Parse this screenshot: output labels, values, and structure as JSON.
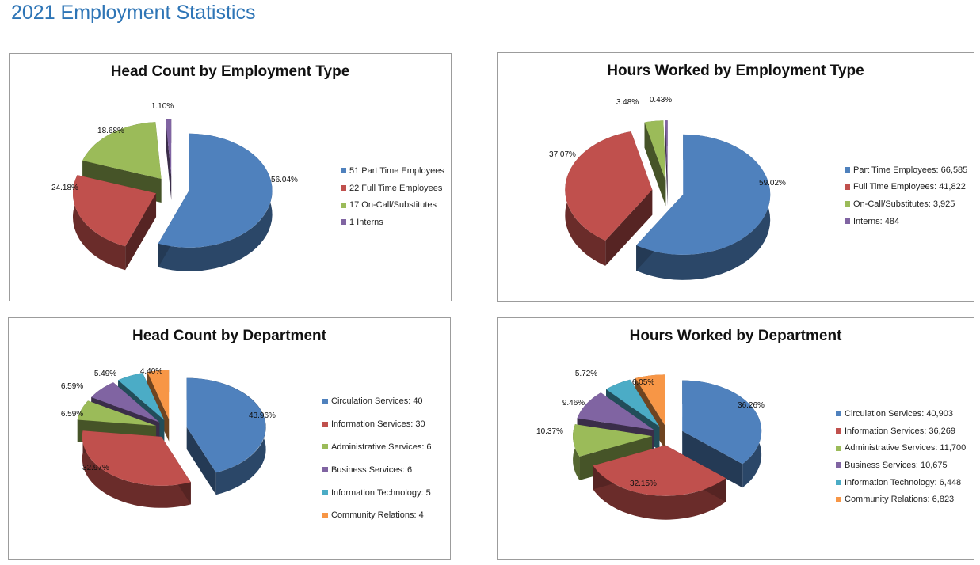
{
  "page_title": "2021 Employment Statistics",
  "chart_data": [
    {
      "type": "pie",
      "title": "Head Count by Employment Type",
      "slices": [
        {
          "label": "51 Part Time Employees",
          "value": 56.04,
          "value_label": "56.04%",
          "color": "#4f81bd"
        },
        {
          "label": "22 Full Time Employees",
          "value": 24.18,
          "value_label": "24.18%",
          "color": "#c0504d"
        },
        {
          "label": "17 On-Call/Substitutes",
          "value": 18.68,
          "value_label": "18.68%",
          "color": "#9bbb59"
        },
        {
          "label": "1 Interns",
          "value": 1.1,
          "value_label": "1.10%",
          "color": "#8064a2"
        }
      ],
      "legend_position": "right"
    },
    {
      "type": "pie",
      "title": "Hours Worked by Employment Type",
      "slices": [
        {
          "label": "Part Time Employees: 66,585",
          "value": 59.02,
          "value_label": "59.02%",
          "color": "#4f81bd"
        },
        {
          "label": "Full Time Employees: 41,822",
          "value": 37.07,
          "value_label": "37.07%",
          "color": "#c0504d"
        },
        {
          "label": "On-Call/Substitutes: 3,925",
          "value": 3.48,
          "value_label": "3.48%",
          "color": "#9bbb59"
        },
        {
          "label": "Interns: 484",
          "value": 0.43,
          "value_label": "0.43%",
          "color": "#8064a2"
        }
      ],
      "legend_position": "right"
    },
    {
      "type": "pie",
      "title": "Head Count by Department",
      "slices": [
        {
          "label": "Circulation Services: 40",
          "value": 43.96,
          "value_label": "43.96%",
          "color": "#4f81bd"
        },
        {
          "label": "Information Services: 30",
          "value": 32.97,
          "value_label": "32.97%",
          "color": "#c0504d"
        },
        {
          "label": "Administrative Services: 6",
          "value": 6.59,
          "value_label": "6.59%",
          "color": "#9bbb59"
        },
        {
          "label": "Business Services: 6",
          "value": 6.59,
          "value_label": "6.59%",
          "color": "#8064a2"
        },
        {
          "label": "Information Technology: 5",
          "value": 5.49,
          "value_label": "5.49%",
          "color": "#4bacc6"
        },
        {
          "label": "Community Relations: 4",
          "value": 4.4,
          "value_label": "4.40%",
          "color": "#f79646"
        }
      ],
      "legend_position": "right"
    },
    {
      "type": "pie",
      "title": "Hours Worked by Department",
      "slices": [
        {
          "label": "Circulation Services: 40,903",
          "value": 36.26,
          "value_label": "36.26%",
          "color": "#4f81bd"
        },
        {
          "label": "Information Services: 36,269",
          "value": 32.15,
          "value_label": "32.15%",
          "color": "#c0504d"
        },
        {
          "label": "Administrative Services: 11,700",
          "value": 10.37,
          "value_label": "10.37%",
          "color": "#9bbb59"
        },
        {
          "label": "Business Services: 10,675",
          "value": 9.46,
          "value_label": "9.46%",
          "color": "#8064a2"
        },
        {
          "label": "Information Technology: 6,448",
          "value": 5.72,
          "value_label": "5.72%",
          "color": "#4bacc6"
        },
        {
          "label": "Community Relations: 6,823",
          "value": 6.05,
          "value_label": "6.05%",
          "color": "#f79646"
        }
      ],
      "legend_position": "right"
    }
  ]
}
